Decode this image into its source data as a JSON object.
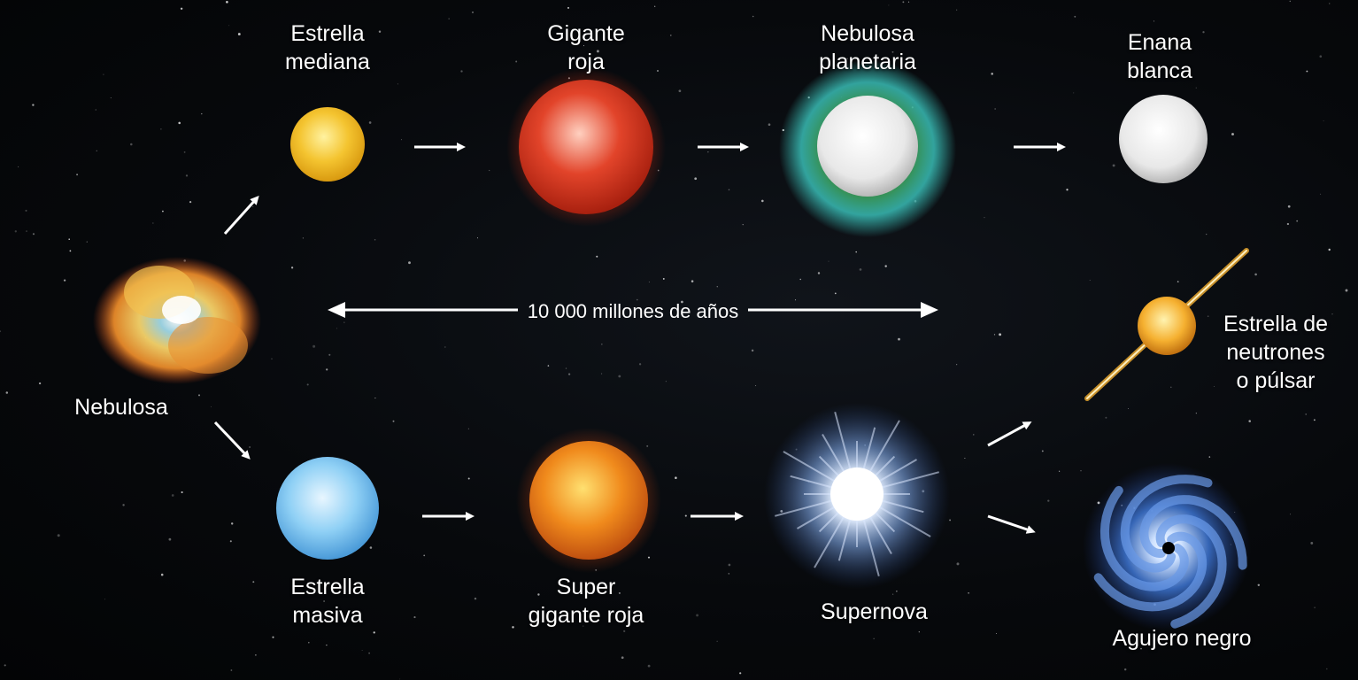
{
  "stages": {
    "nebula": "Nebulosa",
    "average_star": [
      "Estrella",
      "mediana"
    ],
    "red_giant": [
      "Gigante",
      "roja"
    ],
    "planetary_nebula": [
      "Nebulosa",
      "planetaria"
    ],
    "white_dwarf": [
      "Enana",
      "blanca"
    ],
    "neutron_star": [
      "Estrella de",
      "neutrones",
      "o púlsar"
    ],
    "massive_star": [
      "Estrella",
      "masiva"
    ],
    "red_supergiant": [
      "Super",
      "gigante roja"
    ],
    "supernova": "Supernova",
    "black_hole": "Agujero negro"
  },
  "timeline": "10 000 millones de años",
  "colors": {
    "background": "#050608",
    "arrow": "#ffffff",
    "average_star": "#f4c430",
    "red_giant": "#e2442a",
    "planetary_nebula_ring": "#3cc8c0",
    "white_dwarf": "#e8e8e8",
    "massive_star": "#8fd0f5",
    "red_supergiant": "#f08a1c",
    "supernova": "#cfe4ff",
    "neutron_star": "#f5b030",
    "black_hole": "#3a6fc8"
  }
}
